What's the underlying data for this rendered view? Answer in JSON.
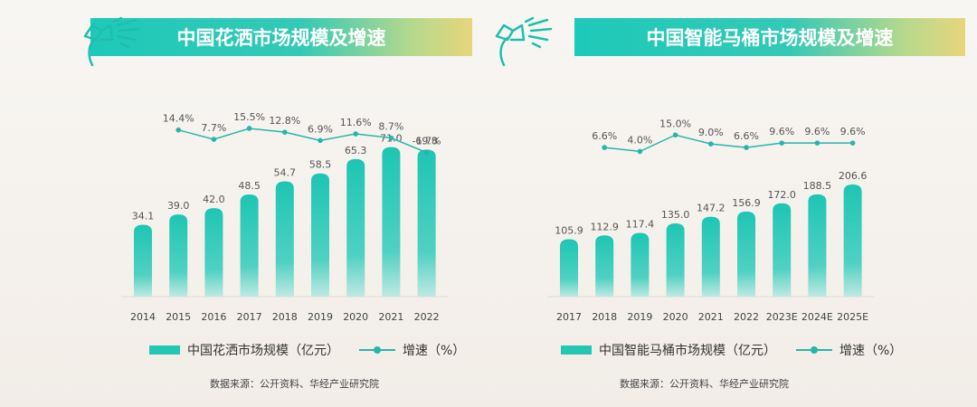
{
  "charts": {
    "left": {
      "title": "中国花洒市场规模及增速",
      "legend_bar": "中国花洒市场规模（亿元）",
      "legend_line": "增速（%）",
      "source": "数据来源：公开资料、华经产业研究院"
    },
    "right": {
      "title": "中国智能马桶市场规模及增速",
      "legend_bar": "中国智能马桶市场规模（亿元）",
      "legend_line": "增速（%）",
      "source": "数据来源：公开资料、华经产业研究院"
    }
  },
  "colors": {
    "bar_top": "#1ec5b3",
    "bar_bottom": "#bfe9e2",
    "line": "#27b5a9",
    "banner_start": "#1ec9b9",
    "banner_end": "#e7d57c"
  },
  "chart_data": [
    {
      "type": "bar",
      "title": "中国花洒市场规模及增速",
      "categories": [
        "2014",
        "2015",
        "2016",
        "2017",
        "2018",
        "2019",
        "2020",
        "2021",
        "2022"
      ],
      "series": [
        {
          "name": "中国花洒市场规模（亿元）",
          "type": "bar",
          "values": [
            34.1,
            39.0,
            42.0,
            48.5,
            54.7,
            58.5,
            65.3,
            71.0,
            69.8
          ],
          "labels": [
            "34.1",
            "39.0",
            "42.0",
            "48.5",
            "54.7",
            "58.5",
            "65.3",
            "71.0",
            "69.8"
          ]
        },
        {
          "name": "增速（%）",
          "type": "line",
          "values": [
            null,
            14.4,
            7.7,
            15.5,
            12.8,
            6.9,
            11.6,
            8.7,
            -1.7
          ],
          "labels": [
            null,
            "14.4%",
            "7.7%",
            "15.5%",
            "12.8%",
            "6.9%",
            "11.6%",
            "8.7%",
            "-1.7%"
          ]
        }
      ],
      "legend": "bottom"
    },
    {
      "type": "bar",
      "title": "中国智能马桶市场规模及增速",
      "categories": [
        "2017",
        "2018",
        "2019",
        "2020",
        "2021",
        "2022",
        "2023E",
        "2024E",
        "2025E"
      ],
      "series": [
        {
          "name": "中国智能马桶市场规模（亿元）",
          "type": "bar",
          "values": [
            105.9,
            112.9,
            117.4,
            135.0,
            147.2,
            156.9,
            172.0,
            188.5,
            206.6
          ],
          "labels": [
            "105.9",
            "112.9",
            "117.4",
            "135.0",
            "147.2",
            "156.9",
            "172.0",
            "188.5",
            "206.6"
          ]
        },
        {
          "name": "增速（%）",
          "type": "line",
          "values": [
            null,
            6.6,
            4.0,
            15.0,
            9.0,
            6.6,
            9.6,
            9.6,
            9.6
          ],
          "labels": [
            null,
            "6.6%",
            "4.0%",
            "15.0%",
            "9.0%",
            "6.6%",
            "9.6%",
            "9.6%",
            "9.6%"
          ]
        }
      ],
      "legend": "bottom"
    }
  ]
}
